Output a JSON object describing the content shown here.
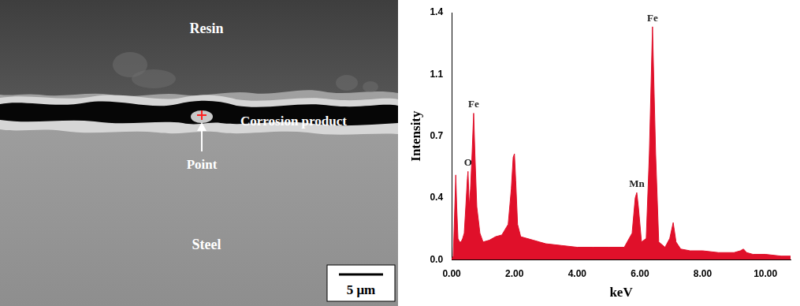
{
  "micrograph": {
    "labels": {
      "resin": "Resin",
      "corrosion": "Corrosion product",
      "point": "Point",
      "steel": "Steel"
    },
    "scale_bar": "5 μm"
  },
  "chart_data": {
    "type": "line",
    "x_label": "keV",
    "y_label": "Intensity",
    "color": "#e0102a",
    "grid": false,
    "x": [
      0,
      0.05,
      0.1,
      0.13,
      0.16,
      0.2,
      0.25,
      0.3,
      0.35,
      0.4,
      0.45,
      0.5,
      0.52,
      0.56,
      0.6,
      0.65,
      0.7,
      0.74,
      0.8,
      0.9,
      1.0,
      1.2,
      1.4,
      1.6,
      1.8,
      1.9,
      1.96,
      2.0,
      2.04,
      2.1,
      2.2,
      2.4,
      2.6,
      2.8,
      3.0,
      3.5,
      4.0,
      4.5,
      5.0,
      5.5,
      5.75,
      5.85,
      5.9,
      5.95,
      6.05,
      6.2,
      6.3,
      6.4,
      6.5,
      6.6,
      6.8,
      6.95,
      7.06,
      7.15,
      7.3,
      7.6,
      8.0,
      8.5,
      9.0,
      9.2,
      9.3,
      9.4,
      9.6,
      10.0,
      10.5,
      10.8
    ],
    "values": [
      0,
      0.02,
      0.3,
      0.48,
      0.3,
      0.12,
      0.1,
      0.1,
      0.12,
      0.15,
      0.3,
      0.46,
      0.5,
      0.3,
      0.4,
      0.6,
      0.83,
      0.6,
      0.3,
      0.15,
      0.1,
      0.11,
      0.13,
      0.14,
      0.2,
      0.4,
      0.58,
      0.6,
      0.45,
      0.2,
      0.13,
      0.12,
      0.11,
      0.1,
      0.09,
      0.08,
      0.07,
      0.07,
      0.07,
      0.07,
      0.15,
      0.35,
      0.38,
      0.3,
      0.1,
      0.12,
      0.6,
      1.32,
      0.6,
      0.1,
      0.07,
      0.12,
      0.21,
      0.1,
      0.06,
      0.05,
      0.05,
      0.04,
      0.04,
      0.05,
      0.06,
      0.04,
      0.03,
      0.03,
      0.02,
      0.02
    ],
    "xlim": [
      0,
      10.8
    ],
    "xticks": [
      {
        "value": 0,
        "label": "0.00"
      },
      {
        "value": 2,
        "label": "2.00"
      },
      {
        "value": 4,
        "label": "4.00"
      },
      {
        "value": 6,
        "label": "6.00"
      },
      {
        "value": 8,
        "label": "8.00"
      },
      {
        "value": 10,
        "label": "10.00"
      }
    ],
    "ylim": [
      0,
      1.4
    ],
    "yticks": [
      {
        "value": 0,
        "label": "0.0"
      },
      {
        "value": 0.35,
        "label": "0.4"
      },
      {
        "value": 0.7,
        "label": "0.7"
      },
      {
        "value": 1.05,
        "label": "1.1"
      },
      {
        "value": 1.4,
        "label": "1.4"
      }
    ],
    "annotations": [
      {
        "text": "O",
        "x": 0.52,
        "y": 0.5
      },
      {
        "text": "Fe",
        "x": 0.7,
        "y": 0.83
      },
      {
        "text": "Mn",
        "x": 5.9,
        "y": 0.38
      },
      {
        "text": "Fe",
        "x": 6.4,
        "y": 1.32
      }
    ]
  }
}
